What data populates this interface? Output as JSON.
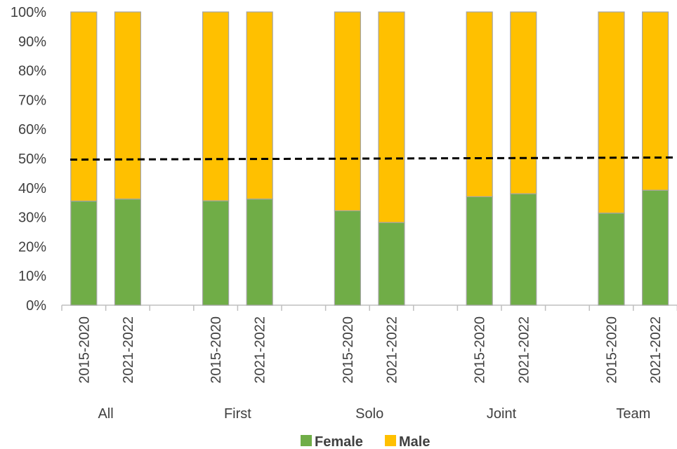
{
  "chart_data": {
    "type": "bar",
    "stacked": true,
    "percent_stacked": true,
    "groups": [
      "All",
      "First",
      "Solo",
      "Joint",
      "Team"
    ],
    "categories": [
      "2015-2020",
      "2021-2022"
    ],
    "series": [
      {
        "name": "Female",
        "color": "#70ad47",
        "values": [
          [
            35.5,
            36.2
          ],
          [
            35.6,
            36.2
          ],
          [
            32.2,
            28.2
          ],
          [
            37.0,
            38.0
          ],
          [
            31.4,
            39.2
          ]
        ]
      },
      {
        "name": "Male",
        "color": "#ffc000",
        "values": [
          [
            64.5,
            63.8
          ],
          [
            64.4,
            63.8
          ],
          [
            67.8,
            71.8
          ],
          [
            63.0,
            62.0
          ],
          [
            68.6,
            60.8
          ]
        ]
      }
    ],
    "ylim": [
      0,
      100
    ],
    "yticks": [
      "0%",
      "10%",
      "20%",
      "30%",
      "40%",
      "50%",
      "60%",
      "70%",
      "80%",
      "90%",
      "100%"
    ],
    "reference_line": {
      "y": 50,
      "style": "dashed",
      "color": "#000000"
    },
    "legend": {
      "position": "bottom",
      "entries": [
        "Female",
        "Male"
      ]
    },
    "grid": false
  }
}
